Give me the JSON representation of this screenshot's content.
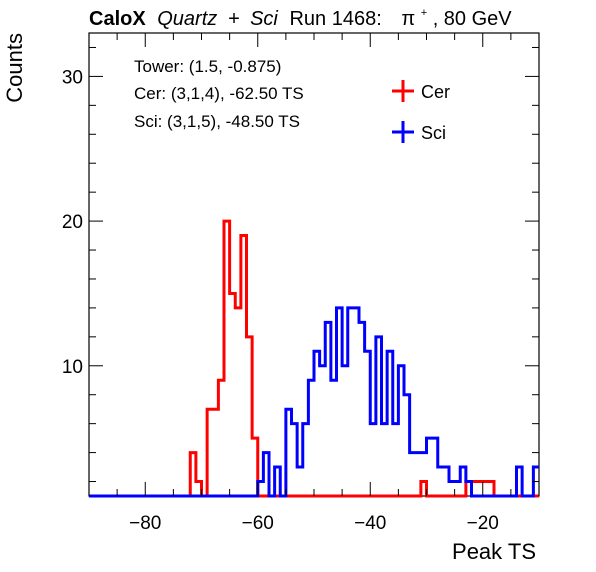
{
  "header": {
    "brand": "CaloX",
    "setup": "Quartz + Sci",
    "quartz": "Quartz",
    "plus": "+",
    "sci": "Sci",
    "run": "Run 1468:",
    "particle_base": "π",
    "particle_charge": "+",
    "energy": ", 80 GeV"
  },
  "info": {
    "tower": "Tower: (1.5, -0.875)",
    "cer": "Cer: (3,1,4), -62.50 TS",
    "sci": "Sci: (3,1,5), -48.50 TS"
  },
  "colors": {
    "cer": "#ff0000",
    "sci": "#0000ff"
  },
  "chart_data": {
    "type": "histogram",
    "xlabel": "Peak TS",
    "ylabel": "Counts",
    "xlim": [
      -90,
      -10
    ],
    "ylim": [
      1,
      33
    ],
    "x_ticks": [
      -80,
      -60,
      -40,
      -20
    ],
    "x_tick_labels": [
      "−80",
      "−60",
      "−40",
      "−20"
    ],
    "y_ticks": [
      10,
      20,
      30
    ],
    "y_tick_labels": [
      "10",
      "20",
      "30"
    ],
    "bin_width": 1,
    "legend": {
      "position": "top-right",
      "entries": [
        "Cer",
        "Sci"
      ]
    },
    "series": [
      {
        "name": "Cer",
        "color": "#ff0000",
        "bin_start": -90,
        "values": [
          1,
          1,
          1,
          1,
          1,
          1,
          1,
          1,
          1,
          1,
          1,
          1,
          1,
          1,
          1,
          1,
          1,
          1,
          4,
          2,
          1,
          7,
          7,
          9,
          20,
          15,
          14,
          19,
          12,
          5,
          1,
          1,
          1,
          1,
          1,
          1,
          1,
          1,
          1,
          1,
          1,
          1,
          1,
          1,
          1,
          1,
          1,
          1,
          1,
          1,
          1,
          1,
          1,
          1,
          1,
          1,
          1,
          1,
          1,
          2,
          1,
          1,
          1,
          1,
          1,
          1,
          1,
          2,
          2,
          2,
          2,
          2,
          1,
          1,
          1,
          1,
          1,
          1,
          1,
          1
        ]
      },
      {
        "name": "Sci",
        "color": "#0000ff",
        "bin_start": -90,
        "values": [
          1,
          1,
          1,
          1,
          1,
          1,
          1,
          1,
          1,
          1,
          1,
          1,
          1,
          1,
          1,
          1,
          1,
          1,
          1,
          1,
          1,
          1,
          1,
          1,
          1,
          1,
          1,
          1,
          1,
          1,
          2,
          4,
          1,
          3,
          1,
          7,
          6,
          3,
          6,
          9,
          11,
          10,
          13,
          9,
          14,
          10,
          14,
          14,
          13,
          11,
          6,
          12,
          6,
          11,
          6,
          10,
          8,
          4,
          4,
          4,
          5,
          5,
          3,
          3,
          2,
          2,
          3,
          2,
          1,
          1,
          1,
          1,
          1,
          1,
          1,
          1,
          3,
          1,
          1,
          3
        ]
      }
    ]
  }
}
